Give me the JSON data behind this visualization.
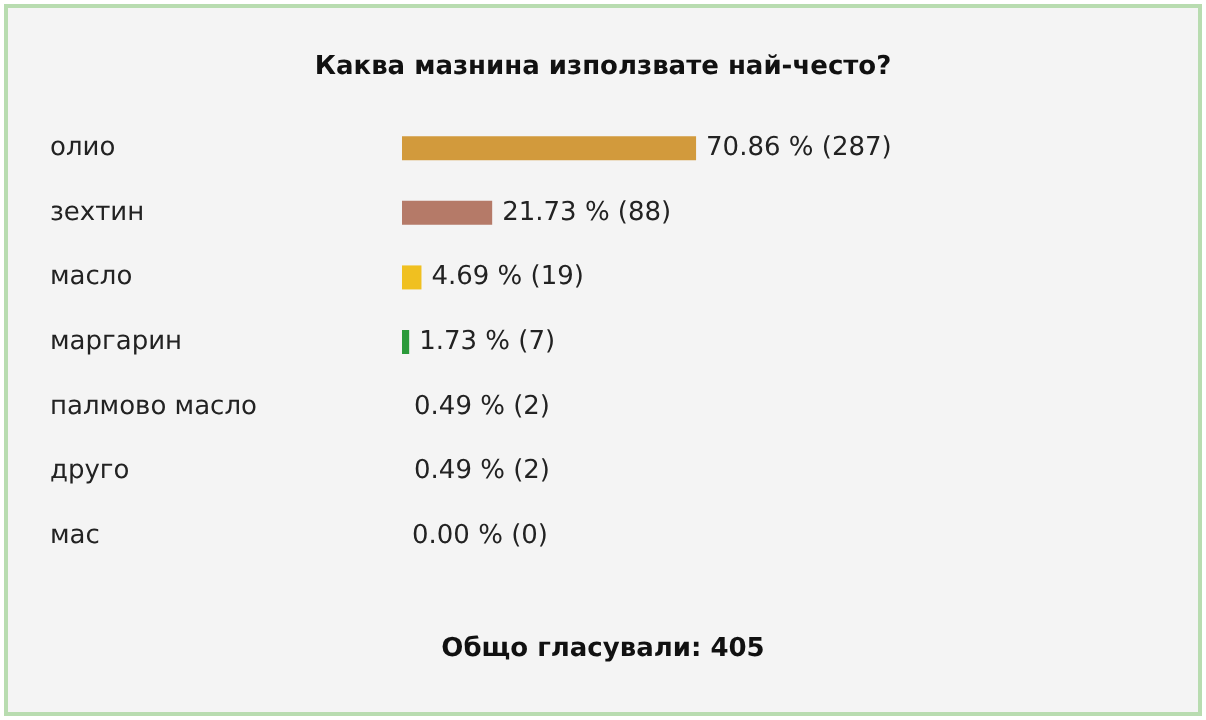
{
  "chart_data": {
    "type": "bar",
    "orientation": "horizontal",
    "title": "Каква мазнина използвате най-често?",
    "categories": [
      "олио",
      "зехтин",
      "масло",
      "маргарин",
      "палмово масло",
      "друго",
      "мас"
    ],
    "values": [
      70.86,
      21.73,
      4.69,
      1.73,
      0.49,
      0.49,
      0.0
    ],
    "colors": [
      "#d29a3c",
      "#b57a68",
      "#f0c020",
      "#2a9a3a",
      "#f4f4f4",
      "#f4f4f4",
      "#f4f4f4"
    ],
    "value_labels": [
      "70.86 % (287)",
      "21.73 % (88)",
      "4.69 % (19)",
      "1.73 % (7)",
      "0.49 % (2)",
      "0.49 % (2)",
      "0.00 % (0)"
    ],
    "annotations": [
      "Общо гласували: 405"
    ],
    "grid": false
  }
}
